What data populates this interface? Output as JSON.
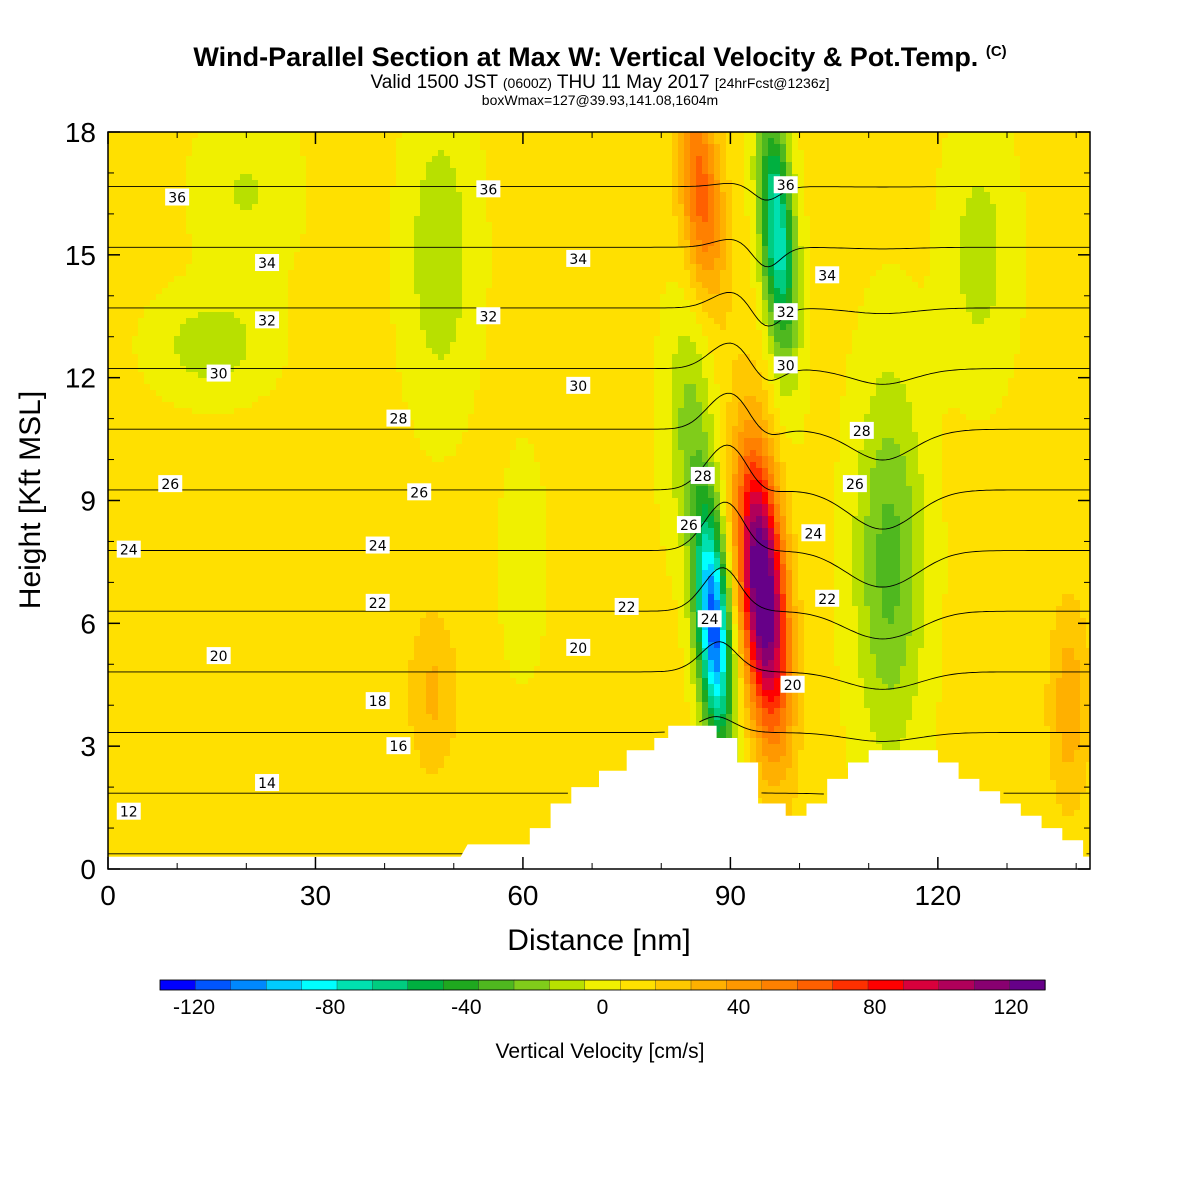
{
  "title": {
    "main": "Wind-Parallel Section at Max W: Vertical Velocity & Pot.Temp.",
    "copyright": "(C)",
    "valid_prefix": "Valid 1500 JST",
    "valid_zulu": "(0600Z)",
    "valid_date": "THU 11 May 2017",
    "forecast": "[24hrFcst@1236z]",
    "box": "boxWmax=127@39.93,141.08,1604m"
  },
  "chart_data": {
    "type": "heatmap",
    "xlabel": "Distance [nm]",
    "ylabel": "Height [Kft MSL]",
    "xlim": [
      0,
      142
    ],
    "ylim": [
      0,
      18
    ],
    "x_ticks": [
      "0",
      "30",
      "60",
      "90",
      "120"
    ],
    "x_tick_values": [
      0,
      30,
      60,
      90,
      120
    ],
    "y_ticks": [
      "0",
      "3",
      "6",
      "9",
      "12",
      "15",
      "18"
    ],
    "y_tick_values": [
      0,
      3,
      6,
      9,
      12,
      15,
      18
    ],
    "colorbar": {
      "label": "Vertical Velocity [cm/s]",
      "range": [
        -130,
        130
      ],
      "tick_labels": [
        "-120",
        "-80",
        "-40",
        "0",
        "40",
        "80",
        "120"
      ],
      "tick_values": [
        -120,
        -80,
        -40,
        0,
        40,
        80,
        120
      ],
      "colors": [
        "#0000ff",
        "#0055ff",
        "#0088ff",
        "#00ccff",
        "#00ffff",
        "#00e0b0",
        "#00cc80",
        "#00b040",
        "#1fa81f",
        "#4fb81f",
        "#80cc1a",
        "#b8e000",
        "#f0f000",
        "#ffe000",
        "#ffc800",
        "#ffb000",
        "#ff9800",
        "#ff8000",
        "#ff6000",
        "#ff3000",
        "#ff0000",
        "#d8003c",
        "#b0005a",
        "#880070",
        "#660088"
      ]
    },
    "velocity_features": [
      {
        "kind": "updraft",
        "x": 95,
        "y": 6.5,
        "peak_cm_s": 127
      },
      {
        "kind": "downdraft",
        "x": 87,
        "y": 5.5,
        "peak_cm_s": -115
      }
    ],
    "terrain_profile": [
      [
        51,
        0.3
      ],
      [
        52,
        0.6
      ],
      [
        61,
        0.6
      ],
      [
        61,
        1.0
      ],
      [
        64,
        1.0
      ],
      [
        64,
        1.6
      ],
      [
        67,
        1.6
      ],
      [
        67,
        2.0
      ],
      [
        71,
        2.0
      ],
      [
        71,
        2.4
      ],
      [
        75,
        2.4
      ],
      [
        75,
        2.9
      ],
      [
        79,
        2.9
      ],
      [
        79,
        3.2
      ],
      [
        81,
        3.2
      ],
      [
        81,
        3.5
      ],
      [
        88,
        3.5
      ],
      [
        88,
        3.2
      ],
      [
        91,
        3.2
      ],
      [
        91,
        2.6
      ],
      [
        94,
        2.6
      ],
      [
        94,
        1.6
      ],
      [
        98,
        1.6
      ],
      [
        98,
        1.3
      ],
      [
        101,
        1.3
      ],
      [
        101,
        1.6
      ],
      [
        104,
        1.6
      ],
      [
        104,
        2.2
      ],
      [
        107,
        2.2
      ],
      [
        107,
        2.6
      ],
      [
        110,
        2.6
      ],
      [
        110,
        2.9
      ],
      [
        120,
        2.9
      ],
      [
        120,
        2.6
      ],
      [
        123,
        2.6
      ],
      [
        123,
        2.2
      ],
      [
        126,
        2.2
      ],
      [
        126,
        1.9
      ],
      [
        129,
        1.9
      ],
      [
        129,
        1.6
      ],
      [
        132,
        1.6
      ],
      [
        132,
        1.3
      ],
      [
        135,
        1.3
      ],
      [
        135,
        1.0
      ],
      [
        138,
        1.0
      ],
      [
        138,
        0.7
      ],
      [
        141,
        0.7
      ],
      [
        141,
        0.3
      ]
    ],
    "theta_levels": [
      12,
      14,
      16,
      18,
      20,
      22,
      24,
      26,
      28,
      30,
      32,
      34,
      36
    ],
    "theta_labels": [
      {
        "text": "12",
        "x": 3,
        "y": 1.4
      },
      {
        "text": "14",
        "x": 23,
        "y": 2.1
      },
      {
        "text": "16",
        "x": 42,
        "y": 3.0
      },
      {
        "text": "18",
        "x": 39,
        "y": 4.1
      },
      {
        "text": "20",
        "x": 16,
        "y": 5.2
      },
      {
        "text": "20",
        "x": 68,
        "y": 5.4
      },
      {
        "text": "20",
        "x": 99,
        "y": 4.5
      },
      {
        "text": "22",
        "x": 39,
        "y": 6.5
      },
      {
        "text": "22",
        "x": 75,
        "y": 6.4
      },
      {
        "text": "22",
        "x": 104,
        "y": 6.6
      },
      {
        "text": "24",
        "x": 3,
        "y": 7.8
      },
      {
        "text": "24",
        "x": 39,
        "y": 7.9
      },
      {
        "text": "24",
        "x": 87,
        "y": 6.1
      },
      {
        "text": "24",
        "x": 102,
        "y": 8.2
      },
      {
        "text": "26",
        "x": 9,
        "y": 9.4
      },
      {
        "text": "26",
        "x": 45,
        "y": 9.2
      },
      {
        "text": "26",
        "x": 84,
        "y": 8.4
      },
      {
        "text": "26",
        "x": 108,
        "y": 9.4
      },
      {
        "text": "28",
        "x": 42,
        "y": 11.0
      },
      {
        "text": "28",
        "x": 86,
        "y": 9.6
      },
      {
        "text": "28",
        "x": 109,
        "y": 10.7
      },
      {
        "text": "30",
        "x": 16,
        "y": 12.1
      },
      {
        "text": "30",
        "x": 68,
        "y": 11.8
      },
      {
        "text": "30",
        "x": 98,
        "y": 12.3
      },
      {
        "text": "32",
        "x": 23,
        "y": 13.4
      },
      {
        "text": "32",
        "x": 55,
        "y": 13.5
      },
      {
        "text": "32",
        "x": 98,
        "y": 13.6
      },
      {
        "text": "34",
        "x": 23,
        "y": 14.8
      },
      {
        "text": "34",
        "x": 68,
        "y": 14.9
      },
      {
        "text": "34",
        "x": 104,
        "y": 14.5
      },
      {
        "text": "36",
        "x": 10,
        "y": 16.4
      },
      {
        "text": "36",
        "x": 55,
        "y": 16.6
      },
      {
        "text": "36",
        "x": 98,
        "y": 16.7
      }
    ]
  }
}
